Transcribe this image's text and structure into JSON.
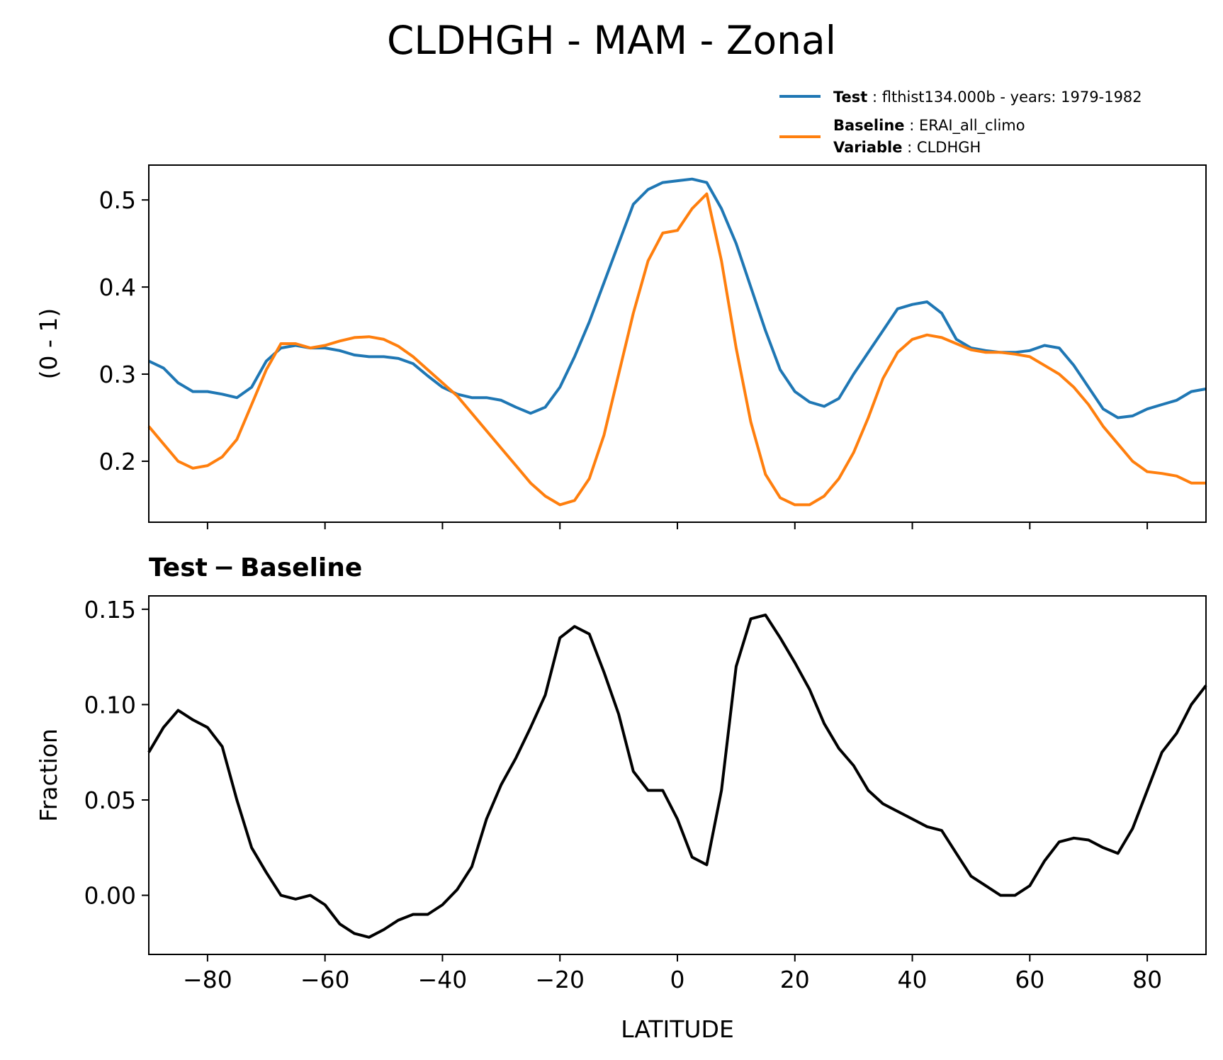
{
  "title": "CLDHGH - MAM - Zonal",
  "legend": {
    "test_key": "Test",
    "test_value": "flthist134.000b - years: 1979-1982",
    "baseline_key": "Baseline",
    "baseline_value": "ERAI_all_climo",
    "variable_key": "Variable",
    "variable_value": "CLDHGH"
  },
  "colors": {
    "test": "#1f77b4",
    "baseline": "#ff7f0e",
    "diff": "#000000"
  },
  "chart_data": [
    {
      "type": "line",
      "panel": "top",
      "title": "",
      "xlabel": "",
      "ylabel": "(0 - 1)",
      "xlim": [
        -90,
        90
      ],
      "ylim": [
        0.13,
        0.54
      ],
      "xticks": [
        -80,
        -60,
        -40,
        -20,
        0,
        20,
        40,
        60,
        80
      ],
      "yticks": [
        0.2,
        0.3,
        0.4,
        0.5
      ],
      "ytick_labels": [
        "0.2",
        "0.3",
        "0.4",
        "0.5"
      ],
      "x": [
        -90,
        -87.5,
        -85,
        -82.5,
        -80,
        -77.5,
        -75,
        -72.5,
        -70,
        -67.5,
        -65,
        -62.5,
        -60,
        -57.5,
        -55,
        -52.5,
        -50,
        -47.5,
        -45,
        -42.5,
        -40,
        -37.5,
        -35,
        -32.5,
        -30,
        -27.5,
        -25,
        -22.5,
        -20,
        -17.5,
        -15,
        -12.5,
        -10,
        -7.5,
        -5,
        -2.5,
        0,
        2.5,
        5,
        7.5,
        10,
        12.5,
        15,
        17.5,
        20,
        22.5,
        25,
        27.5,
        30,
        32.5,
        35,
        37.5,
        40,
        42.5,
        45,
        47.5,
        50,
        52.5,
        55,
        57.5,
        60,
        62.5,
        65,
        67.5,
        70,
        72.5,
        75,
        77.5,
        80,
        82.5,
        85,
        87.5,
        90
      ],
      "series": [
        {
          "name": "Test",
          "values": [
            0.315,
            0.307,
            0.29,
            0.28,
            0.28,
            0.277,
            0.273,
            0.285,
            0.315,
            0.33,
            0.333,
            0.33,
            0.33,
            0.327,
            0.322,
            0.32,
            0.32,
            0.318,
            0.312,
            0.298,
            0.285,
            0.277,
            0.273,
            0.273,
            0.27,
            0.262,
            0.255,
            0.262,
            0.285,
            0.32,
            0.36,
            0.405,
            0.45,
            0.495,
            0.512,
            0.52,
            0.522,
            0.524,
            0.52,
            0.49,
            0.45,
            0.4,
            0.35,
            0.305,
            0.28,
            0.268,
            0.263,
            0.272,
            0.3,
            0.325,
            0.35,
            0.375,
            0.38,
            0.383,
            0.37,
            0.34,
            0.33,
            0.327,
            0.325,
            0.325,
            0.327,
            0.333,
            0.33,
            0.31,
            0.285,
            0.26,
            0.25,
            0.252,
            0.26,
            0.265,
            0.27,
            0.28,
            0.283
          ]
        },
        {
          "name": "Baseline",
          "values": [
            0.24,
            0.22,
            0.2,
            0.192,
            0.195,
            0.205,
            0.225,
            0.265,
            0.305,
            0.335,
            0.335,
            0.33,
            0.333,
            0.338,
            0.342,
            0.343,
            0.34,
            0.332,
            0.32,
            0.305,
            0.29,
            0.275,
            0.255,
            0.235,
            0.215,
            0.195,
            0.175,
            0.16,
            0.15,
            0.155,
            0.18,
            0.23,
            0.3,
            0.37,
            0.43,
            0.462,
            0.465,
            0.49,
            0.507,
            0.43,
            0.33,
            0.245,
            0.185,
            0.158,
            0.15,
            0.15,
            0.16,
            0.18,
            0.21,
            0.25,
            0.295,
            0.325,
            0.34,
            0.345,
            0.342,
            0.335,
            0.328,
            0.325,
            0.325,
            0.323,
            0.32,
            0.31,
            0.3,
            0.285,
            0.265,
            0.24,
            0.22,
            0.2,
            0.188,
            0.186,
            0.183,
            0.175,
            0.175
          ]
        }
      ]
    },
    {
      "type": "line",
      "panel": "bottom",
      "title_bold_left": "Test",
      "title_minus": "−",
      "title_bold_right": "Baseline",
      "xlabel": "LATITUDE",
      "ylabel": "Fraction",
      "xlim": [
        -90,
        90
      ],
      "ylim": [
        -0.031,
        0.157
      ],
      "xticks": [
        -80,
        -60,
        -40,
        -20,
        0,
        20,
        40,
        60,
        80
      ],
      "xtick_labels": [
        "−80",
        "−60",
        "−40",
        "−20",
        "0",
        "20",
        "40",
        "60",
        "80"
      ],
      "yticks": [
        0.0,
        0.05,
        0.1,
        0.15
      ],
      "ytick_labels": [
        "0.00",
        "0.05",
        "0.10",
        "0.15"
      ],
      "x": [
        -90,
        -87.5,
        -85,
        -82.5,
        -80,
        -77.5,
        -75,
        -72.5,
        -70,
        -67.5,
        -65,
        -62.5,
        -60,
        -57.5,
        -55,
        -52.5,
        -50,
        -47.5,
        -45,
        -42.5,
        -40,
        -37.5,
        -35,
        -32.5,
        -30,
        -27.5,
        -25,
        -22.5,
        -20,
        -17.5,
        -15,
        -12.5,
        -10,
        -7.5,
        -5,
        -2.5,
        0,
        2.5,
        5,
        7.5,
        10,
        12.5,
        15,
        17.5,
        20,
        22.5,
        25,
        27.5,
        30,
        32.5,
        35,
        37.5,
        40,
        42.5,
        45,
        47.5,
        50,
        52.5,
        55,
        57.5,
        60,
        62.5,
        65,
        67.5,
        70,
        72.5,
        75,
        77.5,
        80,
        82.5,
        85,
        87.5,
        90
      ],
      "series": [
        {
          "name": "Test − Baseline",
          "values": [
            0.075,
            0.088,
            0.097,
            0.092,
            0.088,
            0.078,
            0.05,
            0.025,
            0.012,
            0.0,
            -0.002,
            0.0,
            -0.005,
            -0.015,
            -0.02,
            -0.022,
            -0.018,
            -0.013,
            -0.01,
            -0.01,
            -0.005,
            0.003,
            0.015,
            0.04,
            0.058,
            0.072,
            0.088,
            0.105,
            0.135,
            0.141,
            0.137,
            0.117,
            0.095,
            0.065,
            0.055,
            0.055,
            0.04,
            0.02,
            0.016,
            0.055,
            0.12,
            0.145,
            0.147,
            0.135,
            0.122,
            0.108,
            0.09,
            0.077,
            0.068,
            0.055,
            0.048,
            0.044,
            0.04,
            0.036,
            0.034,
            0.022,
            0.01,
            0.005,
            0.0,
            0.0,
            0.005,
            0.018,
            0.028,
            0.03,
            0.029,
            0.025,
            0.022,
            0.035,
            0.055,
            0.075,
            0.085,
            0.1,
            0.11
          ]
        }
      ]
    }
  ]
}
